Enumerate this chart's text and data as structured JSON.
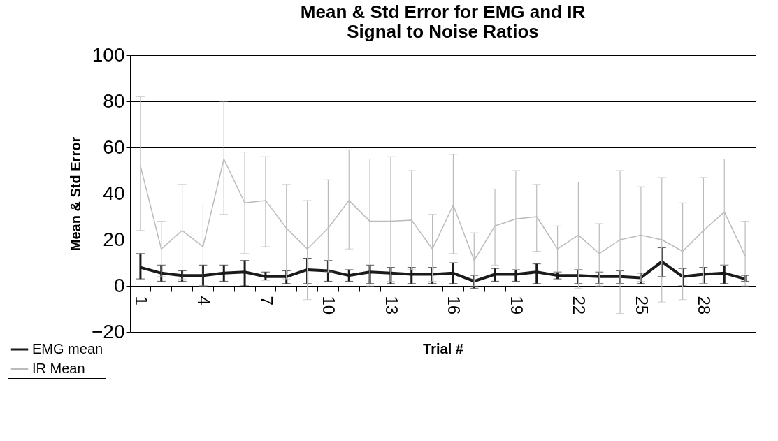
{
  "chart_data": {
    "type": "line",
    "title": "Mean & Std Error for EMG and IR Signal to Noise Ratios",
    "xlabel": "Trial #",
    "ylabel": "Mean & Std Error",
    "categories": [
      "1",
      null,
      null,
      "4",
      null,
      null,
      "7",
      null,
      null,
      "10",
      null,
      null,
      "13",
      null,
      null,
      "16",
      null,
      null,
      "19",
      null,
      null,
      "22",
      null,
      null,
      "25",
      null,
      null,
      "28",
      null,
      null
    ],
    "series": [
      {
        "name": "EMG mean",
        "color": "#1a1a1a",
        "values": [
          8,
          5.5,
          4.5,
          4.5,
          5.5,
          6,
          4,
          4,
          7,
          6.5,
          4.5,
          6,
          5.5,
          5,
          5,
          5.5,
          2,
          5,
          5,
          6,
          4.5,
          4.5,
          4,
          4,
          3.5,
          10.5,
          4,
          5,
          5.5,
          3
        ],
        "errors": [
          [
            3,
            14
          ],
          [
            2,
            9
          ],
          [
            2,
            6.5
          ],
          [
            0,
            9
          ],
          [
            2,
            9
          ],
          [
            0,
            11
          ],
          [
            2.5,
            6
          ],
          [
            1,
            6.5
          ],
          [
            1,
            12
          ],
          [
            2,
            11
          ],
          [
            2,
            7
          ],
          [
            1,
            9
          ],
          [
            1,
            8
          ],
          [
            1,
            8
          ],
          [
            1,
            8
          ],
          [
            1,
            10
          ],
          [
            -1,
            4.5
          ],
          [
            2,
            7.5
          ],
          [
            2,
            7
          ],
          [
            1,
            9.5
          ],
          [
            3,
            6
          ],
          [
            1,
            7
          ],
          [
            1,
            6
          ],
          [
            1,
            6.5
          ],
          [
            1,
            5.5
          ],
          [
            4,
            16.5
          ],
          [
            0,
            7.5
          ],
          [
            1,
            8
          ],
          [
            1,
            9
          ],
          [
            2,
            4.5
          ]
        ]
      },
      {
        "name": "IR Mean",
        "color": "#bbbbbb",
        "values": [
          52,
          16,
          24,
          17,
          55,
          36,
          37,
          25,
          16,
          25,
          37,
          28,
          28,
          28.5,
          16,
          35,
          11,
          26,
          29,
          30,
          16,
          22,
          14,
          20,
          22,
          20,
          15,
          24,
          32,
          13
        ],
        "errors": [
          [
            24,
            82
          ],
          [
            4,
            28
          ],
          [
            3,
            44
          ],
          [
            0,
            35
          ],
          [
            31,
            80
          ],
          [
            14,
            58
          ],
          [
            17,
            56
          ],
          [
            3,
            44
          ],
          [
            -6,
            37
          ],
          [
            6,
            46
          ],
          [
            16,
            59
          ],
          [
            0,
            55
          ],
          [
            2,
            56
          ],
          [
            7,
            50
          ],
          [
            2,
            31
          ],
          [
            14,
            57
          ],
          [
            0,
            23
          ],
          [
            9,
            42
          ],
          [
            7,
            50
          ],
          [
            15,
            44
          ],
          [
            6,
            26
          ],
          [
            -1,
            45
          ],
          [
            0,
            27
          ],
          [
            -12,
            50
          ],
          [
            2,
            43
          ],
          [
            -7,
            47
          ],
          [
            -6,
            36
          ],
          [
            1,
            47
          ],
          [
            9,
            55
          ],
          [
            0,
            28
          ]
        ]
      }
    ],
    "ylim": [
      -20,
      100
    ],
    "yticks": [
      -20,
      0,
      20,
      40,
      60,
      80,
      100
    ],
    "grid": "y",
    "legend": "bottom left",
    "marker": "none",
    "line_style": "solid"
  }
}
